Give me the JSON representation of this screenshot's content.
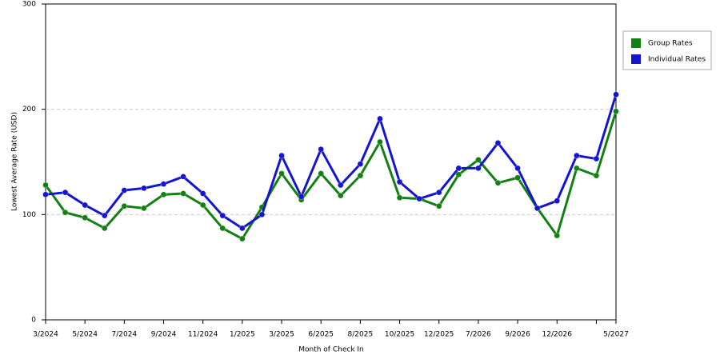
{
  "chart_data": {
    "type": "line",
    "x_label": "Month of Check In",
    "y_label": "Lowest Average Rate (USD)",
    "categories": [
      "3/2024",
      null,
      "5/2024",
      null,
      "7/2024",
      null,
      "9/2024",
      null,
      "11/2024",
      null,
      "1/2025",
      null,
      "3/2025",
      null,
      "6/2025",
      null,
      "8/2025",
      null,
      "10/2025",
      null,
      "12/2025",
      null,
      "7/2026",
      null,
      "9/2026",
      null,
      "12/2026",
      null,
      null,
      "5/2027"
    ],
    "series": [
      {
        "name": "Group Rates",
        "color": "#138013",
        "values": [
          128,
          102,
          97,
          87,
          108,
          106,
          119,
          120,
          109,
          87,
          77,
          107,
          139,
          114,
          139,
          118,
          137,
          169,
          116,
          115,
          108,
          138,
          152,
          130,
          135,
          106,
          80,
          144,
          137,
          198
        ]
      },
      {
        "name": "Individual Rates",
        "color": "#1515d0",
        "values": [
          119,
          121,
          109,
          99,
          123,
          125,
          129,
          136,
          120,
          99,
          87,
          100,
          156,
          117,
          162,
          128,
          148,
          191,
          131,
          115,
          121,
          144,
          144,
          168,
          144,
          106,
          113,
          156,
          153,
          214
        ]
      }
    ],
    "ylim": [
      0,
      300
    ],
    "yticks": [
      0,
      100,
      200,
      300
    ],
    "grid": true,
    "legend": "right"
  }
}
